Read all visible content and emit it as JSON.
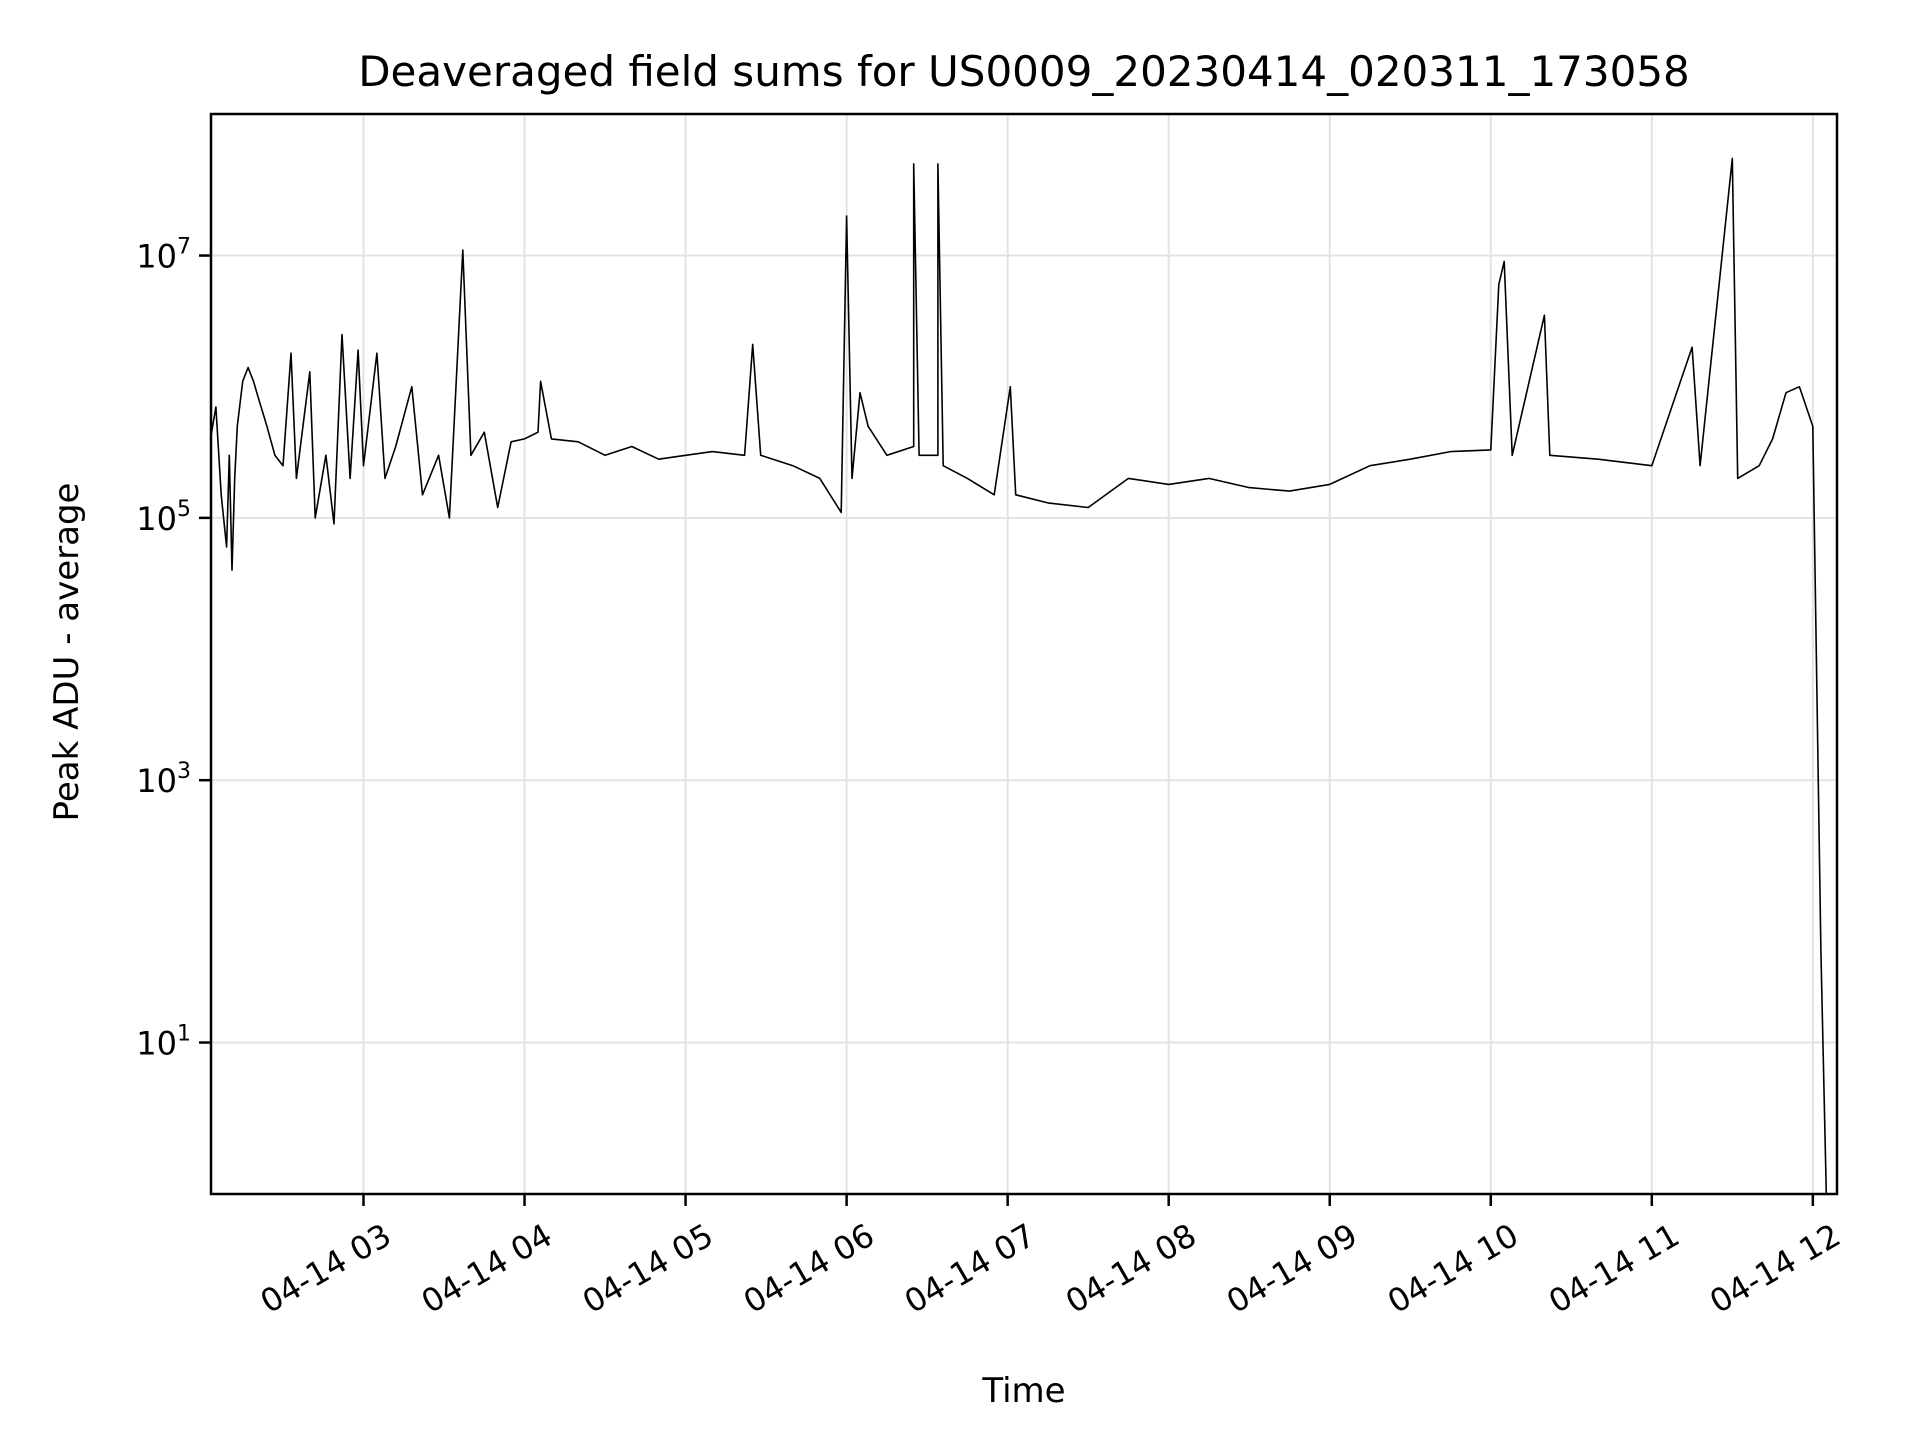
{
  "chart_data": {
    "type": "line",
    "title": "Deaveraged field sums for US0009_20230414_020311_173058",
    "xlabel": "Time",
    "ylabel": "Peak ADU - average",
    "x_axis": {
      "kind": "time",
      "range": [
        "2023-04-14 02:03:11",
        "2023-04-14 12:09:00"
      ],
      "ticks": [
        {
          "t": "2023-04-14 03:00",
          "label": "04-14 03"
        },
        {
          "t": "2023-04-14 04:00",
          "label": "04-14 04"
        },
        {
          "t": "2023-04-14 05:00",
          "label": "04-14 05"
        },
        {
          "t": "2023-04-14 06:00",
          "label": "04-14 06"
        },
        {
          "t": "2023-04-14 07:00",
          "label": "04-14 07"
        },
        {
          "t": "2023-04-14 08:00",
          "label": "04-14 08"
        },
        {
          "t": "2023-04-14 09:00",
          "label": "04-14 09"
        },
        {
          "t": "2023-04-14 10:00",
          "label": "04-14 10"
        },
        {
          "t": "2023-04-14 11:00",
          "label": "04-14 11"
        },
        {
          "t": "2023-04-14 12:00",
          "label": "04-14 12"
        }
      ]
    },
    "y_axis": {
      "scale": "log",
      "range": [
        0.7,
        120000000.0
      ],
      "ticks": [
        {
          "value": 10,
          "base": "10",
          "exp": "1"
        },
        {
          "value": 1000,
          "base": "10",
          "exp": "3"
        },
        {
          "value": 100000,
          "base": "10",
          "exp": "5"
        },
        {
          "value": 10000000,
          "base": "10",
          "exp": "7"
        }
      ]
    },
    "grid": true,
    "series": [
      {
        "color": "#000000",
        "points": [
          [
            "2023-04-14 02:03",
            400000
          ],
          [
            "2023-04-14 02:05",
            700000
          ],
          [
            "2023-04-14 02:07",
            150000
          ],
          [
            "2023-04-14 02:09",
            60000
          ],
          [
            "2023-04-14 02:10",
            300000
          ],
          [
            "2023-04-14 02:11",
            40000
          ],
          [
            "2023-04-14 02:12",
            200000
          ],
          [
            "2023-04-14 02:13",
            500000
          ],
          [
            "2023-04-14 02:15",
            1100000
          ],
          [
            "2023-04-14 02:17",
            1400000
          ],
          [
            "2023-04-14 02:19",
            1100000
          ],
          [
            "2023-04-14 02:21",
            800000
          ],
          [
            "2023-04-14 02:24",
            500000
          ],
          [
            "2023-04-14 02:27",
            300000
          ],
          [
            "2023-04-14 02:30",
            250000
          ],
          [
            "2023-04-14 02:33",
            1800000
          ],
          [
            "2023-04-14 02:35",
            200000
          ],
          [
            "2023-04-14 02:40",
            1300000
          ],
          [
            "2023-04-14 02:42",
            100000
          ],
          [
            "2023-04-14 02:46",
            300000
          ],
          [
            "2023-04-14 02:49",
            90000
          ],
          [
            "2023-04-14 02:52",
            2500000
          ],
          [
            "2023-04-14 02:55",
            200000
          ],
          [
            "2023-04-14 02:58",
            1900000
          ],
          [
            "2023-04-14 03:00",
            250000
          ],
          [
            "2023-04-14 03:05",
            1800000
          ],
          [
            "2023-04-14 03:08",
            200000
          ],
          [
            "2023-04-14 03:12",
            350000
          ],
          [
            "2023-04-14 03:18",
            1000000
          ],
          [
            "2023-04-14 03:22",
            150000
          ],
          [
            "2023-04-14 03:28",
            300000
          ],
          [
            "2023-04-14 03:32",
            100000
          ],
          [
            "2023-04-14 03:37",
            11000000
          ],
          [
            "2023-04-14 03:40",
            300000
          ],
          [
            "2023-04-14 03:45",
            450000
          ],
          [
            "2023-04-14 03:50",
            120000
          ],
          [
            "2023-04-14 03:55",
            380000
          ],
          [
            "2023-04-14 04:00",
            400000
          ],
          [
            "2023-04-14 04:05",
            450000
          ],
          [
            "2023-04-14 04:06",
            1100000
          ],
          [
            "2023-04-14 04:10",
            400000
          ],
          [
            "2023-04-14 04:20",
            380000
          ],
          [
            "2023-04-14 04:30",
            300000
          ],
          [
            "2023-04-14 04:40",
            350000
          ],
          [
            "2023-04-14 04:50",
            280000
          ],
          [
            "2023-04-14 05:00",
            300000
          ],
          [
            "2023-04-14 05:10",
            320000
          ],
          [
            "2023-04-14 05:22",
            300000
          ],
          [
            "2023-04-14 05:25",
            2100000
          ],
          [
            "2023-04-14 05:28",
            300000
          ],
          [
            "2023-04-14 05:40",
            250000
          ],
          [
            "2023-04-14 05:50",
            200000
          ],
          [
            "2023-04-14 05:58",
            110000
          ],
          [
            "2023-04-14 06:00",
            20000000
          ],
          [
            "2023-04-14 06:02",
            200000
          ],
          [
            "2023-04-14 06:05",
            900000
          ],
          [
            "2023-04-14 06:08",
            500000
          ],
          [
            "2023-04-14 06:15",
            300000
          ],
          [
            "2023-04-14 06:25",
            350000
          ],
          [
            "2023-04-14 06:25",
            50000000
          ],
          [
            "2023-04-14 06:27",
            300000
          ],
          [
            "2023-04-14 06:34",
            300000
          ],
          [
            "2023-04-14 06:34",
            50000000
          ],
          [
            "2023-04-14 06:36",
            250000
          ],
          [
            "2023-04-14 06:45",
            200000
          ],
          [
            "2023-04-14 06:55",
            150000
          ],
          [
            "2023-04-14 07:01",
            1000000
          ],
          [
            "2023-04-14 07:03",
            150000
          ],
          [
            "2023-04-14 07:15",
            130000
          ],
          [
            "2023-04-14 07:30",
            120000
          ],
          [
            "2023-04-14 07:45",
            200000
          ],
          [
            "2023-04-14 08:00",
            180000
          ],
          [
            "2023-04-14 08:15",
            200000
          ],
          [
            "2023-04-14 08:30",
            170000
          ],
          [
            "2023-04-14 08:45",
            160000
          ],
          [
            "2023-04-14 09:00",
            180000
          ],
          [
            "2023-04-14 09:15",
            250000
          ],
          [
            "2023-04-14 09:30",
            280000
          ],
          [
            "2023-04-14 09:45",
            320000
          ],
          [
            "2023-04-14 10:00",
            330000
          ],
          [
            "2023-04-14 10:03",
            6000000
          ],
          [
            "2023-04-14 10:05",
            9000000
          ],
          [
            "2023-04-14 10:08",
            300000
          ],
          [
            "2023-04-14 10:20",
            3500000
          ],
          [
            "2023-04-14 10:22",
            300000
          ],
          [
            "2023-04-14 10:40",
            280000
          ],
          [
            "2023-04-14 11:00",
            250000
          ],
          [
            "2023-04-14 11:15",
            2000000
          ],
          [
            "2023-04-14 11:18",
            250000
          ],
          [
            "2023-04-14 11:30",
            55000000
          ],
          [
            "2023-04-14 11:32",
            200000
          ],
          [
            "2023-04-14 11:40",
            250000
          ],
          [
            "2023-04-14 11:45",
            400000
          ],
          [
            "2023-04-14 11:50",
            900000
          ],
          [
            "2023-04-14 11:55",
            1000000
          ],
          [
            "2023-04-14 12:00",
            500000
          ],
          [
            "2023-04-14 12:03",
            50
          ],
          [
            "2023-04-14 12:05",
            0.7
          ]
        ]
      }
    ]
  }
}
